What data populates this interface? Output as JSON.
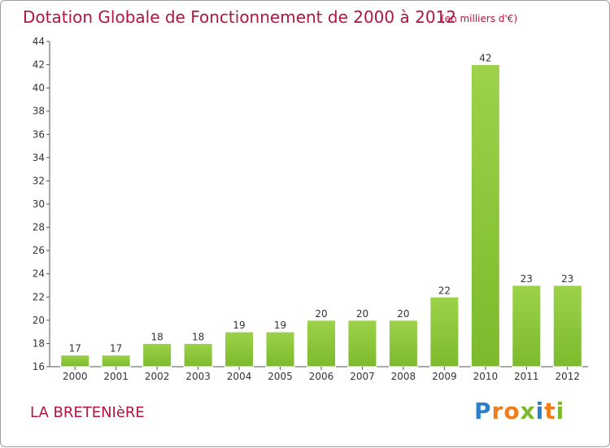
{
  "chart_data": {
    "type": "bar",
    "title": "Dotation Globale de Fonctionnement de 2000 à 2012",
    "subtitle": "(en milliers d'€)",
    "categories": [
      "2000",
      "2001",
      "2002",
      "2003",
      "2004",
      "2005",
      "2006",
      "2007",
      "2008",
      "2009",
      "2010",
      "2011",
      "2012"
    ],
    "values": [
      17,
      17,
      18,
      18,
      19,
      19,
      20,
      20,
      20,
      22,
      42,
      23,
      23
    ],
    "ylim": [
      16,
      44
    ],
    "yticks": [
      16,
      18,
      20,
      22,
      24,
      26,
      28,
      30,
      32,
      34,
      36,
      38,
      40,
      42,
      44
    ],
    "grid": false,
    "bar_color": "#7cba2c",
    "bar_highlight": "#9dd24a",
    "xlabel": "",
    "ylabel": ""
  },
  "commune": "LA BRETENIèRE",
  "logo": {
    "letters": [
      {
        "ch": "P",
        "color": "#2c7fc9"
      },
      {
        "ch": "r",
        "color": "#f07d1a"
      },
      {
        "ch": "o",
        "color": "#f07d1a"
      },
      {
        "ch": "x",
        "color": "#7cba2c"
      },
      {
        "ch": "i",
        "color": "#2c7fc9"
      },
      {
        "ch": "t",
        "color": "#f07d1a"
      },
      {
        "ch": "i",
        "color": "#7cba2c"
      }
    ]
  },
  "colors": {
    "title": "#b0163f",
    "axis": "#555555",
    "label": "#333333"
  }
}
